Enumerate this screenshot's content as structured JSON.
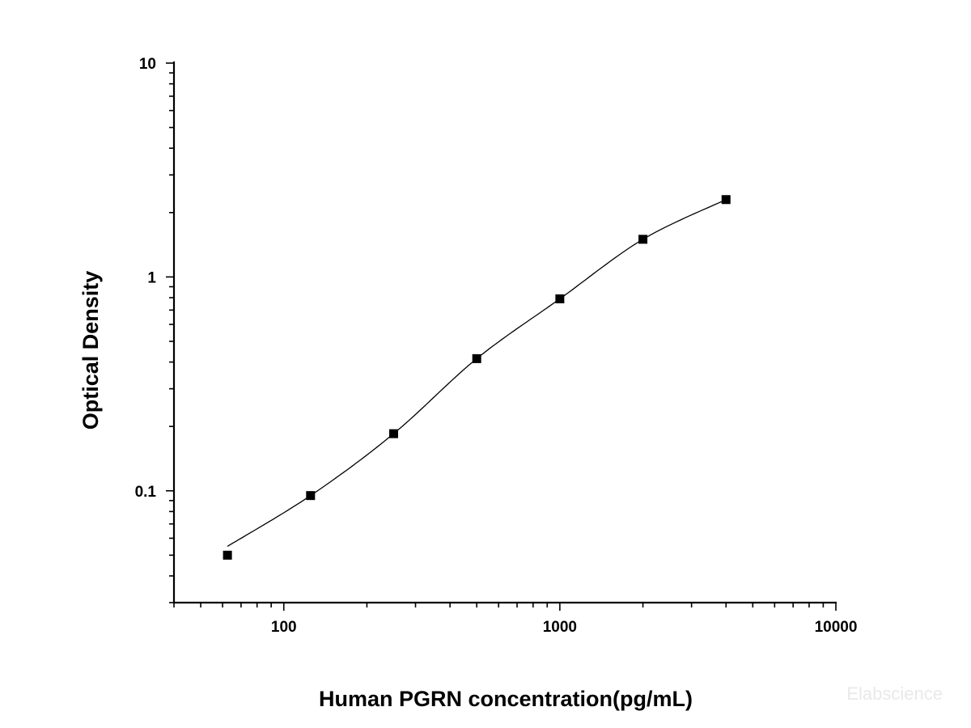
{
  "chart_data": {
    "type": "scatter",
    "xlabel": "Human PGRN concentration(pg/mL)",
    "ylabel": "Optical Density",
    "x_scale": "log",
    "y_scale": "log",
    "xlim": [
      40,
      10000
    ],
    "ylim": [
      0.03,
      10
    ],
    "x_ticks": [
      100,
      1000,
      10000
    ],
    "x_tick_labels": [
      "100",
      "1000",
      "10000"
    ],
    "y_ticks": [
      0.1,
      1,
      10
    ],
    "y_tick_labels": [
      "0.1",
      "1",
      "10"
    ],
    "grid": false,
    "legend": "none",
    "series": [
      {
        "marker": "square",
        "fit_line": "smooth curve",
        "x": [
          62.5,
          125,
          250,
          500,
          1000,
          2000,
          4000
        ],
        "y": [
          0.05,
          0.095,
          0.185,
          0.415,
          0.79,
          1.5,
          2.3
        ]
      }
    ],
    "colors": {
      "marker": "#000000",
      "line": "#000000"
    }
  },
  "watermark": "Elabscience"
}
